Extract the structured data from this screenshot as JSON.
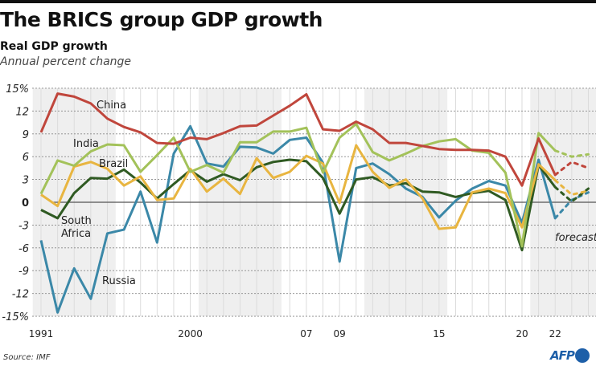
{
  "title": "The BRICS group GDP growth",
  "subtitle": "Real GDP growth",
  "subtitle2": "Annual percent change",
  "source": "Source: IMF",
  "logo": "AFP",
  "chart_data": {
    "type": "line",
    "title": "The BRICS group GDP growth",
    "xlabel": "",
    "ylabel": "Annual percent change",
    "ylim": [
      -15,
      15
    ],
    "yticks": [
      15,
      12,
      9,
      6,
      3,
      0,
      -3,
      -6,
      -9,
      -12,
      -15
    ],
    "ytick_labels": [
      "15%",
      "12",
      "9",
      "6",
      "3",
      "0",
      "-3",
      "-6",
      "-9",
      "-12",
      "-15%"
    ],
    "xlim": [
      1990.5,
      2024.5
    ],
    "xticks": [
      1991,
      2000,
      2007,
      2009,
      2015,
      2020,
      2022
    ],
    "xtick_labels": [
      "1991",
      "2000",
      "07",
      "09",
      "15",
      "20",
      "22"
    ],
    "shaded_year_ranges": [
      [
        1990.5,
        1995.5
      ],
      [
        2000.5,
        2005.5
      ],
      [
        2010.5,
        2015.5
      ],
      [
        2020.5,
        2024.5
      ]
    ],
    "grid": true,
    "forecast_label": "forecast",
    "forecast_years": [
      2022,
      2023,
      2024
    ],
    "years": [
      1991,
      1992,
      1993,
      1994,
      1995,
      1996,
      1997,
      1998,
      1999,
      2000,
      2001,
      2002,
      2003,
      2004,
      2005,
      2006,
      2007,
      2008,
      2009,
      2010,
      2011,
      2012,
      2013,
      2014,
      2015,
      2016,
      2017,
      2018,
      2019,
      2020,
      2021,
      2022
    ],
    "series": [
      {
        "name": "China",
        "label": "China",
        "color": "#c0463c",
        "values": [
          9.2,
          14.3,
          13.9,
          13.0,
          11.0,
          9.9,
          9.2,
          7.8,
          7.7,
          8.5,
          8.3,
          9.1,
          10.0,
          10.1,
          11.4,
          12.7,
          14.2,
          9.6,
          9.4,
          10.6,
          9.6,
          7.8,
          7.8,
          7.4,
          7.0,
          6.9,
          6.9,
          6.8,
          6.0,
          2.2,
          8.4,
          3.6
        ],
        "forecast": [
          3.6,
          5.3,
          4.5
        ]
      },
      {
        "name": "India",
        "label": "India",
        "color": "#a3c25a",
        "values": [
          1.1,
          5.5,
          4.8,
          6.7,
          7.6,
          7.5,
          4.0,
          6.2,
          8.5,
          4.0,
          4.9,
          3.9,
          7.9,
          7.9,
          9.3,
          9.3,
          9.8,
          3.9,
          8.5,
          10.3,
          6.6,
          5.5,
          6.4,
          7.4,
          8.0,
          8.3,
          6.8,
          6.5,
          3.9,
          -5.8,
          9.1,
          6.8
        ],
        "forecast": [
          6.8,
          6.0,
          6.3
        ]
      },
      {
        "name": "Brazil",
        "label": "Brazil",
        "color": "#e8b540",
        "values": [
          1.0,
          -0.5,
          4.7,
          5.3,
          4.4,
          2.2,
          3.4,
          0.3,
          0.5,
          4.4,
          1.4,
          3.1,
          1.1,
          5.8,
          3.2,
          4.0,
          6.1,
          5.1,
          -0.1,
          7.5,
          4.0,
          1.9,
          3.0,
          0.5,
          -3.5,
          -3.3,
          1.3,
          1.8,
          1.2,
          -3.3,
          5.0,
          2.9
        ],
        "forecast": [
          2.9,
          1.0,
          1.5
        ]
      },
      {
        "name": "South Africa",
        "label": "South Africa",
        "color": "#2f5a22",
        "values": [
          -1.0,
          -2.1,
          1.2,
          3.2,
          3.1,
          4.3,
          2.6,
          0.5,
          2.4,
          4.2,
          2.7,
          3.7,
          2.9,
          4.6,
          5.3,
          5.6,
          5.4,
          3.2,
          -1.5,
          3.0,
          3.3,
          2.2,
          2.5,
          1.4,
          1.3,
          0.7,
          1.2,
          1.5,
          0.3,
          -6.3,
          4.9,
          2.0
        ],
        "forecast": [
          2.0,
          0.1,
          1.8
        ]
      },
      {
        "name": "Russia",
        "label": "Russia",
        "color": "#3b88a8",
        "values": [
          -5.0,
          -14.5,
          -8.7,
          -12.7,
          -4.1,
          -3.6,
          1.4,
          -5.3,
          6.4,
          10.0,
          5.1,
          4.7,
          7.3,
          7.2,
          6.4,
          8.2,
          8.5,
          5.2,
          -7.8,
          4.5,
          5.1,
          3.7,
          1.8,
          0.7,
          -2.0,
          0.2,
          1.8,
          2.8,
          2.2,
          -2.7,
          5.6,
          -2.1
        ],
        "forecast": [
          -2.1,
          0.3,
          1.3
        ]
      }
    ]
  }
}
